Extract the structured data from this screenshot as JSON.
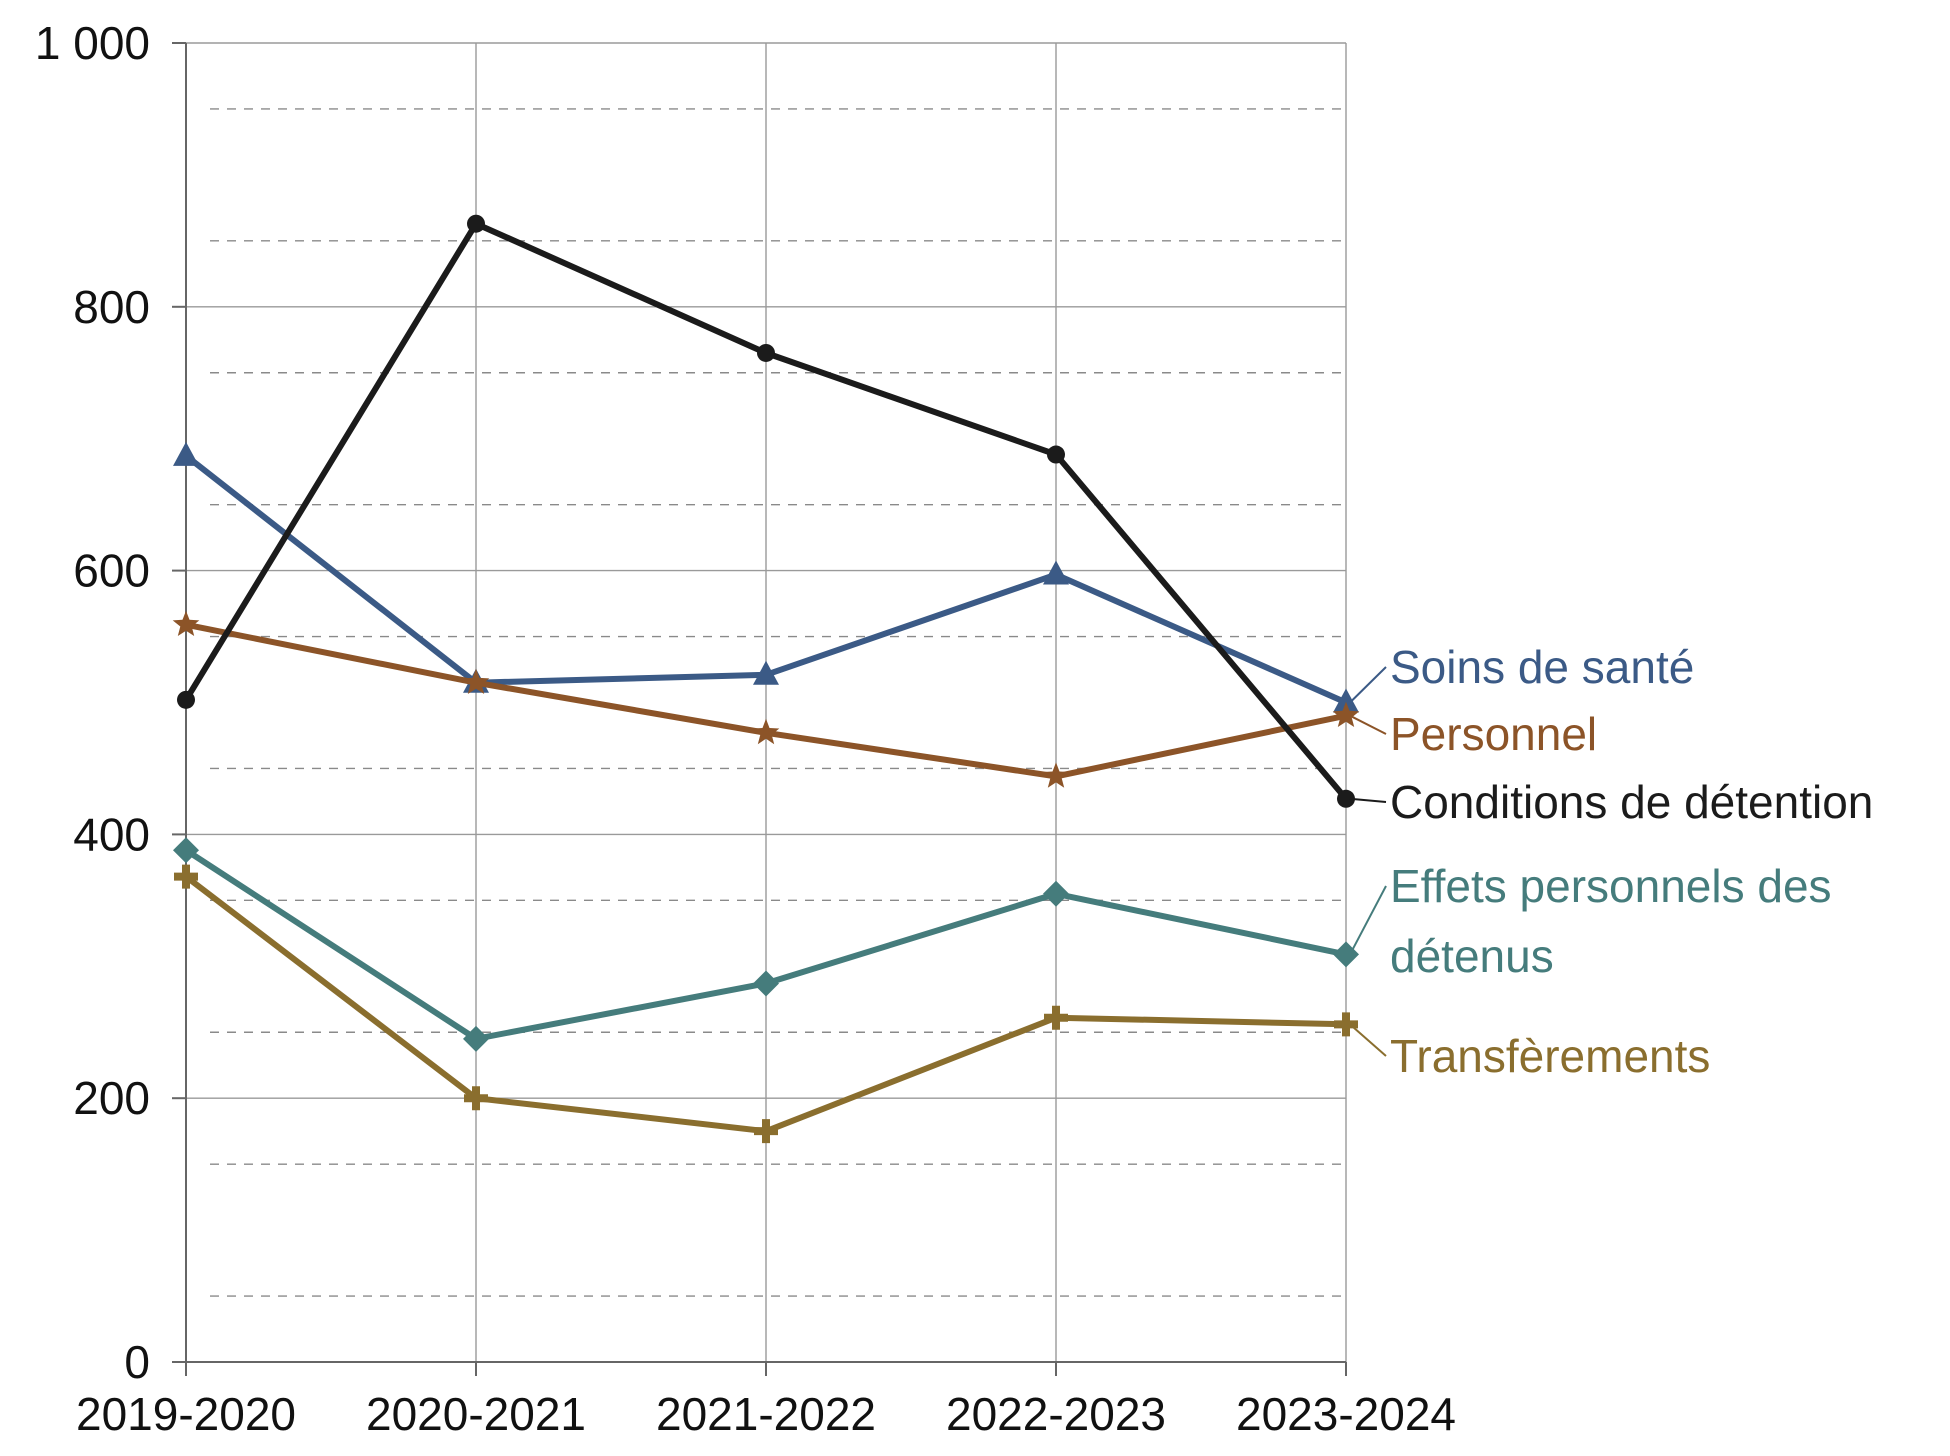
{
  "chart_data": {
    "type": "line",
    "categories": [
      "2019-2020",
      "2020-2021",
      "2021-2022",
      "2022-2023",
      "2023-2024"
    ],
    "ylim": [
      0,
      1000
    ],
    "yticks": [
      0,
      200,
      400,
      600,
      800,
      1000
    ],
    "ytick_labels": [
      "0",
      "200",
      "400",
      "600",
      "800",
      "1 000"
    ],
    "grid": "major solid, minor dashed",
    "legend": "inline labels at right end of each line",
    "series": [
      {
        "name": "Soins de santé",
        "color": "#3b5a86",
        "marker": "triangle",
        "values": [
          687,
          515,
          521,
          597,
          500
        ],
        "label_lines": [
          "Soins de santé"
        ]
      },
      {
        "name": "Personnel",
        "color": "#8c5428",
        "marker": "star",
        "values": [
          559,
          515,
          477,
          444,
          490
        ],
        "label_lines": [
          "Personnel"
        ]
      },
      {
        "name": "Conditions de détention",
        "color": "#1b1b1b",
        "marker": "circle",
        "values": [
          502,
          863,
          765,
          688,
          427
        ],
        "label_lines": [
          "Conditions de détention"
        ]
      },
      {
        "name": "Effets personnels des détenus",
        "color": "#457c7c",
        "marker": "diamond",
        "values": [
          388,
          245,
          287,
          355,
          309
        ],
        "label_lines": [
          "Effets personnels des",
          "détenus"
        ]
      },
      {
        "name": "Transfèrements",
        "color": "#8a6e2e",
        "marker": "plus",
        "values": [
          368,
          200,
          175,
          261,
          256
        ],
        "label_lines": [
          "Transfèrements"
        ]
      }
    ]
  }
}
